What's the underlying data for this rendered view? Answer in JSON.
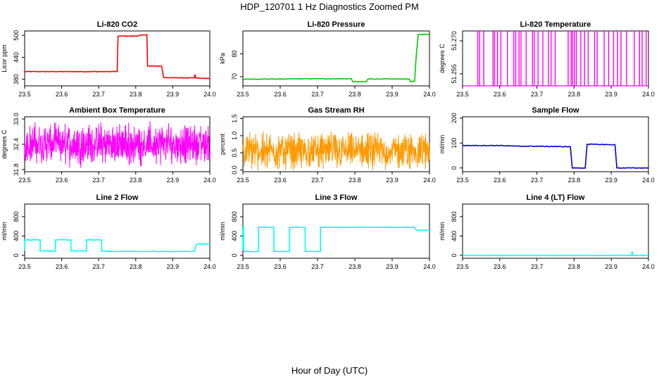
{
  "figure": {
    "title": "HDP_120701  1 Hz Diagnostics Zoomed PM",
    "xlabel": "Hour of Day (UTC)"
  },
  "chart_data": [
    {
      "type": "line",
      "title": "Li-820 CO2",
      "ylabel": "Licor ppm",
      "color": "#ff0000",
      "xlim": [
        23.5,
        24.0
      ],
      "ylim": [
        362,
        512
      ],
      "xticks": [
        "23.5",
        "23.6",
        "23.7",
        "23.8",
        "23.9",
        "24.0"
      ],
      "yticks": [
        380,
        440,
        500
      ],
      "series": [
        {
          "name": "CO2",
          "x": [
            23.5,
            23.55,
            23.6,
            23.65,
            23.7,
            23.75,
            23.752,
            23.8,
            23.83,
            23.832,
            23.87,
            23.875,
            23.9,
            23.95,
            23.958,
            23.96,
            23.962,
            23.97,
            24.0
          ],
          "y": [
            401,
            401,
            401,
            401,
            401,
            401,
            498,
            498,
            502,
            416,
            416,
            385,
            384,
            384,
            384,
            393,
            384,
            383,
            382
          ]
        }
      ]
    },
    {
      "type": "line",
      "title": "Li-820 Pressure",
      "ylabel": "kPa",
      "color": "#00cc00",
      "xlim": [
        23.5,
        24.0
      ],
      "ylim": [
        66,
        90
      ],
      "xticks": [
        "23.5",
        "23.6",
        "23.7",
        "23.8",
        "23.9",
        "24.0"
      ],
      "yticks": [
        70,
        80
      ],
      "series": [
        {
          "name": "Pressure",
          "x": [
            23.5,
            23.6,
            23.7,
            23.79,
            23.795,
            23.83,
            23.835,
            23.9,
            23.945,
            23.95,
            23.96,
            23.965,
            23.97,
            24.0
          ],
          "y": [
            68.9,
            69.0,
            69.1,
            69.1,
            67.8,
            67.8,
            69.0,
            69.0,
            69.0,
            67.8,
            67.9,
            80,
            88.5,
            88.5
          ]
        }
      ]
    },
    {
      "type": "spikes",
      "title": "Li-820 Temperature",
      "ylabel": "degrees C",
      "color": "#ff00ff",
      "xlim": [
        23.5,
        24.0
      ],
      "ylim": [
        51.2495,
        51.2745
      ],
      "xticks": [
        "23.5",
        "23.6",
        "23.7",
        "23.8",
        "23.9",
        "24.0"
      ],
      "yticks": [
        "51.255",
        "51.270"
      ],
      "baseline": 51.2495,
      "spike_top": 51.2745,
      "spike_x": [
        23.541,
        23.546,
        23.557,
        23.582,
        23.586,
        23.594,
        23.603,
        23.621,
        23.638,
        23.643,
        23.652,
        23.657,
        23.671,
        23.688,
        23.693,
        23.703,
        23.716,
        23.731,
        23.738,
        23.749,
        23.784,
        23.792,
        23.796,
        23.801,
        23.806,
        23.818,
        23.828,
        23.838,
        23.855,
        23.862,
        23.881,
        23.893,
        23.906,
        23.917,
        23.926,
        23.941,
        23.962,
        23.976,
        23.983,
        23.994
      ]
    },
    {
      "type": "noise",
      "title": "Ambient Box Temperature",
      "ylabel": "degrees C",
      "color": "#ff00ff",
      "xlim": [
        23.5,
        24.0
      ],
      "ylim": [
        31.75,
        33.05
      ],
      "xticks": [
        "23.5",
        "23.6",
        "23.7",
        "23.8",
        "23.9",
        "24.0"
      ],
      "yticks": [
        "31.8",
        "32.4",
        "33.0"
      ],
      "series": [
        {
          "name": "Ambient Temp",
          "mean": 32.4,
          "range": [
            31.75,
            33.0
          ]
        }
      ]
    },
    {
      "type": "noise",
      "title": "Gas Stream RH",
      "ylabel": "percent",
      "color": "#ff9900",
      "xlim": [
        23.5,
        24.0
      ],
      "ylim": [
        -0.05,
        1.55
      ],
      "xticks": [
        "23.5",
        "23.6",
        "23.7",
        "23.8",
        "23.9",
        "24.0"
      ],
      "yticks": [
        "0.0",
        "0.5",
        "1.0",
        "1.5"
      ],
      "series": [
        {
          "name": "RH",
          "mean": 0.55,
          "range": [
            0.0,
            1.4
          ]
        }
      ]
    },
    {
      "type": "line",
      "title": "Sample Flow",
      "ylabel": "ml/min",
      "color": "#0000cc",
      "xlim": [
        23.5,
        24.0
      ],
      "ylim": [
        -15,
        205
      ],
      "xticks": [
        "23.5",
        "23.6",
        "23.7",
        "23.8",
        "23.9",
        "24.0"
      ],
      "yticks": [
        0,
        100,
        200
      ],
      "series": [
        {
          "name": "Sample Flow",
          "x": [
            23.5,
            23.6,
            23.65,
            23.7,
            23.75,
            23.79,
            23.795,
            23.83,
            23.835,
            23.91,
            23.915,
            24.0
          ],
          "y": [
            90,
            90,
            87,
            87,
            86,
            85,
            0,
            0,
            95,
            93,
            0,
            0
          ]
        }
      ]
    },
    {
      "type": "line",
      "title": "Line 2 Flow",
      "ylabel": "ml/min",
      "color": "#00ffff",
      "xlim": [
        23.5,
        24.0
      ],
      "ylim": [
        -60,
        1060
      ],
      "xticks": [
        "23.5",
        "23.6",
        "23.7",
        "23.8",
        "23.9",
        "24.0"
      ],
      "yticks": [
        0,
        400,
        800
      ],
      "series": [
        {
          "name": "Line 2",
          "x": [
            23.5,
            23.5,
            23.542,
            23.542,
            23.583,
            23.583,
            23.625,
            23.625,
            23.667,
            23.667,
            23.708,
            23.708,
            23.75,
            23.958,
            23.962,
            23.968,
            24.0
          ],
          "y": [
            100,
            320,
            320,
            90,
            90,
            320,
            320,
            90,
            90,
            320,
            320,
            90,
            80,
            80,
            200,
            240,
            230
          ]
        }
      ]
    },
    {
      "type": "line",
      "title": "Line 3 Flow",
      "ylabel": "ml/min",
      "color": "#00ffff",
      "xlim": [
        23.5,
        24.0
      ],
      "ylim": [
        -60,
        1060
      ],
      "xticks": [
        "23.5",
        "23.6",
        "23.7",
        "23.8",
        "23.9",
        "24.0"
      ],
      "yticks": [
        0,
        400,
        800
      ],
      "series": [
        {
          "name": "Line 3",
          "x": [
            23.5,
            23.5,
            23.502,
            23.502,
            23.542,
            23.542,
            23.583,
            23.583,
            23.625,
            23.625,
            23.667,
            23.667,
            23.708,
            23.708,
            23.96,
            23.965,
            24.0
          ],
          "y": [
            100,
            580,
            580,
            80,
            80,
            580,
            580,
            80,
            80,
            580,
            580,
            80,
            80,
            580,
            580,
            520,
            520
          ]
        }
      ]
    },
    {
      "type": "line",
      "title": "Line 4 (LT) Flow",
      "ylabel": "ml/min",
      "color": "#00ffff",
      "xlim": [
        23.5,
        24.0
      ],
      "ylim": [
        -60,
        1060
      ],
      "xticks": [
        "23.5",
        "23.6",
        "23.7",
        "23.8",
        "23.9",
        "24.0"
      ],
      "yticks": [
        0,
        400,
        800
      ],
      "series": [
        {
          "name": "Line 4",
          "x": [
            23.5,
            23.955,
            23.956,
            23.958,
            23.96,
            24.0
          ],
          "y": [
            0,
            0,
            80,
            0,
            0,
            0
          ]
        }
      ]
    }
  ]
}
